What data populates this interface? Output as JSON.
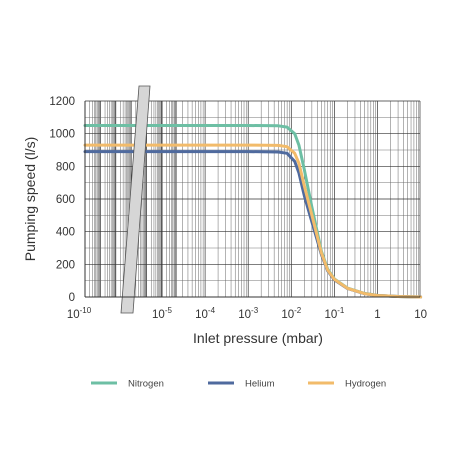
{
  "chart_data": {
    "type": "line",
    "x_scale": "log",
    "xlim": [
      1e-10,
      10
    ],
    "ylim": [
      0,
      1200
    ],
    "xlabel": "Inlet pressure (mbar)",
    "ylabel": "Pumping speed (l/s)",
    "axis_break": "between 10^-10 and 10^-5 on x-axis",
    "grid": true,
    "legend_position": "bottom",
    "x_ticks": [
      {
        "value": 1e-10,
        "base": "10",
        "exp": "-10"
      },
      {
        "value": 1e-05,
        "base": "10",
        "exp": "-5"
      },
      {
        "value": 0.0001,
        "base": "10",
        "exp": "-4"
      },
      {
        "value": 0.001,
        "base": "10",
        "exp": "-3"
      },
      {
        "value": 0.01,
        "base": "10",
        "exp": "-2"
      },
      {
        "value": 0.1,
        "base": "10",
        "exp": "-1"
      },
      {
        "value": 1,
        "base": "1",
        "exp": ""
      },
      {
        "value": 10,
        "base": "10",
        "exp": ""
      }
    ],
    "y_ticks": [
      "0",
      "200",
      "400",
      "600",
      "800",
      "1000",
      "1200"
    ],
    "series": [
      {
        "name": "Nitrogen",
        "color": "#6dbfa4",
        "points": [
          [
            1e-10,
            1050
          ],
          [
            1e-05,
            1050
          ],
          [
            0.001,
            1050
          ],
          [
            0.005,
            1048
          ],
          [
            0.008,
            1040
          ],
          [
            0.012,
            1000
          ],
          [
            0.015,
            930
          ],
          [
            0.02,
            780
          ],
          [
            0.03,
            550
          ],
          [
            0.05,
            280
          ],
          [
            0.07,
            170
          ],
          [
            0.1,
            110
          ],
          [
            0.2,
            55
          ],
          [
            0.5,
            22
          ],
          [
            1,
            10
          ],
          [
            3,
            3
          ],
          [
            10,
            0
          ]
        ]
      },
      {
        "name": "Helium",
        "color": "#4f6a9e",
        "points": [
          [
            1e-10,
            890
          ],
          [
            1e-05,
            890
          ],
          [
            0.001,
            890
          ],
          [
            0.005,
            888
          ],
          [
            0.008,
            880
          ],
          [
            0.012,
            830
          ],
          [
            0.015,
            760
          ],
          [
            0.02,
            620
          ],
          [
            0.03,
            460
          ],
          [
            0.05,
            260
          ],
          [
            0.07,
            160
          ],
          [
            0.1,
            105
          ],
          [
            0.2,
            52
          ],
          [
            0.5,
            20
          ],
          [
            1,
            9
          ],
          [
            3,
            3
          ],
          [
            10,
            0
          ]
        ]
      },
      {
        "name": "Hydrogen",
        "color": "#f2bb6a",
        "points": [
          [
            1e-10,
            930
          ],
          [
            1e-05,
            930
          ],
          [
            0.001,
            930
          ],
          [
            0.005,
            928
          ],
          [
            0.008,
            920
          ],
          [
            0.012,
            880
          ],
          [
            0.015,
            820
          ],
          [
            0.02,
            680
          ],
          [
            0.03,
            500
          ],
          [
            0.05,
            270
          ],
          [
            0.07,
            165
          ],
          [
            0.1,
            108
          ],
          [
            0.2,
            53
          ],
          [
            0.5,
            21
          ],
          [
            1,
            9
          ],
          [
            3,
            3
          ],
          [
            10,
            0
          ]
        ]
      }
    ]
  }
}
